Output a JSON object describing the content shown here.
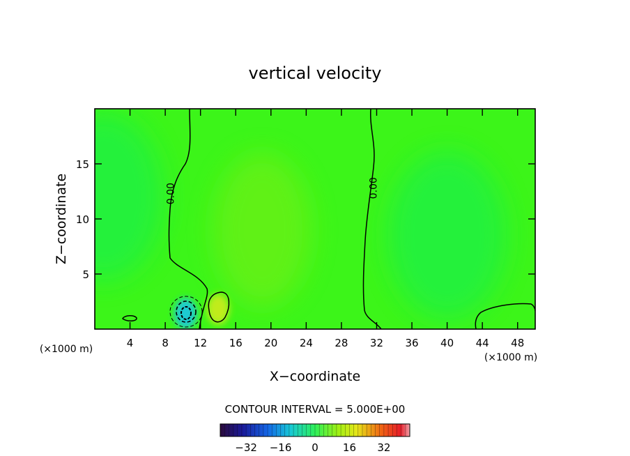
{
  "chart_data": {
    "type": "heatmap",
    "title": "vertical velocity",
    "xlabel": "X−coordinate",
    "ylabel": "Z−coordinate",
    "x_unit_left": "(×1000 m)",
    "x_unit_right": "(×1000 m)",
    "xlim": [
      0,
      50
    ],
    "ylim": [
      0,
      20
    ],
    "x_ticks": [
      4,
      8,
      12,
      16,
      20,
      24,
      28,
      32,
      36,
      40,
      44,
      48
    ],
    "x_tick_labels": [
      "4",
      "8",
      "12",
      "16",
      "20",
      "24",
      "28",
      "32",
      "36",
      "40",
      "44",
      "48"
    ],
    "y_ticks": [
      5,
      10,
      15
    ],
    "y_tick_labels": [
      "5",
      "10",
      "15"
    ],
    "contour_interval_text": "CONTOUR INTERVAL = 5.000E+00",
    "colorbar": {
      "range": [
        -44,
        44
      ],
      "ticks": [
        -32,
        -16,
        0,
        16,
        32
      ],
      "tick_labels": [
        "−32",
        "−16",
        "0",
        "16",
        "32"
      ]
    },
    "zero_contour_labels": [
      {
        "text": "0.00",
        "x": 8.6,
        "y": 12.3
      },
      {
        "text": "0.00",
        "x": 31.6,
        "y": 12.8
      }
    ],
    "field_features": [
      {
        "kind": "updraft",
        "x": 19,
        "y": 9,
        "value": 3
      },
      {
        "kind": "weak-downdraft",
        "x": 1,
        "y": 12,
        "value": -2
      },
      {
        "kind": "weak-downdraft",
        "x": 40,
        "y": 8.5,
        "value": -3
      },
      {
        "kind": "downdraft",
        "x": 10.3,
        "y": 1.4,
        "value": -14
      },
      {
        "kind": "updraft",
        "x": 14,
        "y": 1.8,
        "value": 7
      }
    ]
  },
  "colors": {
    "background_field": "#3cf519",
    "axis": "#000000"
  }
}
